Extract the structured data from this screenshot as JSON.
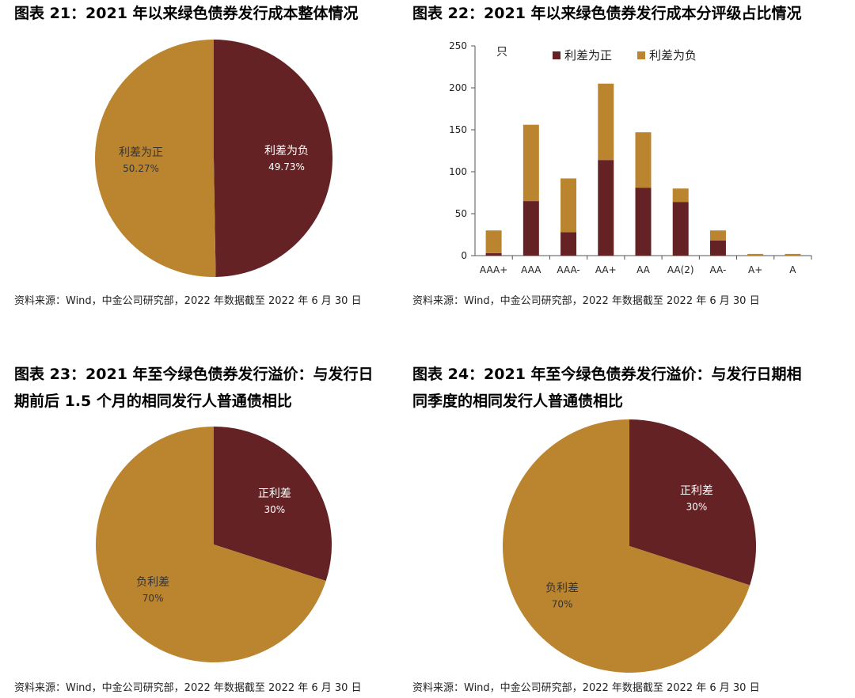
{
  "colors": {
    "positive_spread": "#bb842f",
    "negative_spread": "#652224"
  },
  "panels": [
    {
      "title": "图表 21：2021 年以来绿色债券发行成本整体情况",
      "source": "资料来源：Wind，中金公司研究部，2022 年数据截至 2022 年 6 月 30 日"
    },
    {
      "title": "图表 22：2021 年以来绿色债券发行成本分评级占比情况",
      "source": "资料来源：Wind，中金公司研究部，2022 年数据截至 2022 年 6 月 30 日"
    },
    {
      "title_lines": [
        "图表 23：2021 年至今绿色债券发行溢价：与发行日",
        "期前后 1.5 个月的相同发行人普通债相比"
      ],
      "source": "资料来源：Wind，中金公司研究部，2022 年数据截至 2022 年 6 月 30 日"
    },
    {
      "title_lines": [
        "图表 24：2021 年至今绿色债券发行溢价：与发行日期相",
        "同季度的相同发行人普通债相比"
      ],
      "source": "资料来源：Wind，中金公司研究部，2022 年数据截至 2022 年 6 月 30 日"
    }
  ],
  "chart_data": [
    {
      "type": "pie",
      "slices": [
        {
          "label": "利差为负",
          "value": 49.73,
          "display": "49.73%",
          "color": "#652224"
        },
        {
          "label": "利差为正",
          "value": 50.27,
          "display": "50.27%",
          "color": "#bb842f"
        }
      ]
    },
    {
      "type": "bar",
      "stacked": true,
      "unit_label": "只",
      "categories": [
        "AAA+",
        "AAA",
        "AAA-",
        "AA+",
        "AA",
        "AA(2)",
        "AA-",
        "A+",
        "A"
      ],
      "series": [
        {
          "name": "利差为正",
          "color": "#652224",
          "values": [
            3,
            65,
            28,
            114,
            81,
            64,
            18,
            0,
            0
          ]
        },
        {
          "name": "利差为负",
          "color": "#bb842f",
          "values": [
            27,
            91,
            64,
            91,
            66,
            16,
            12,
            2,
            2
          ]
        }
      ],
      "ylim": [
        0,
        250
      ],
      "yticks": [
        0,
        50,
        100,
        150,
        200,
        250
      ],
      "legend": "top"
    },
    {
      "type": "pie",
      "slices": [
        {
          "label": "正利差",
          "value": 30,
          "display": "30%",
          "color": "#652224"
        },
        {
          "label": "负利差",
          "value": 70,
          "display": "70%",
          "color": "#bb842f"
        }
      ]
    },
    {
      "type": "pie",
      "slices": [
        {
          "label": "正利差",
          "value": 30,
          "display": "30%",
          "color": "#652224"
        },
        {
          "label": "负利差",
          "value": 70,
          "display": "70%",
          "color": "#bb842f"
        }
      ]
    }
  ]
}
